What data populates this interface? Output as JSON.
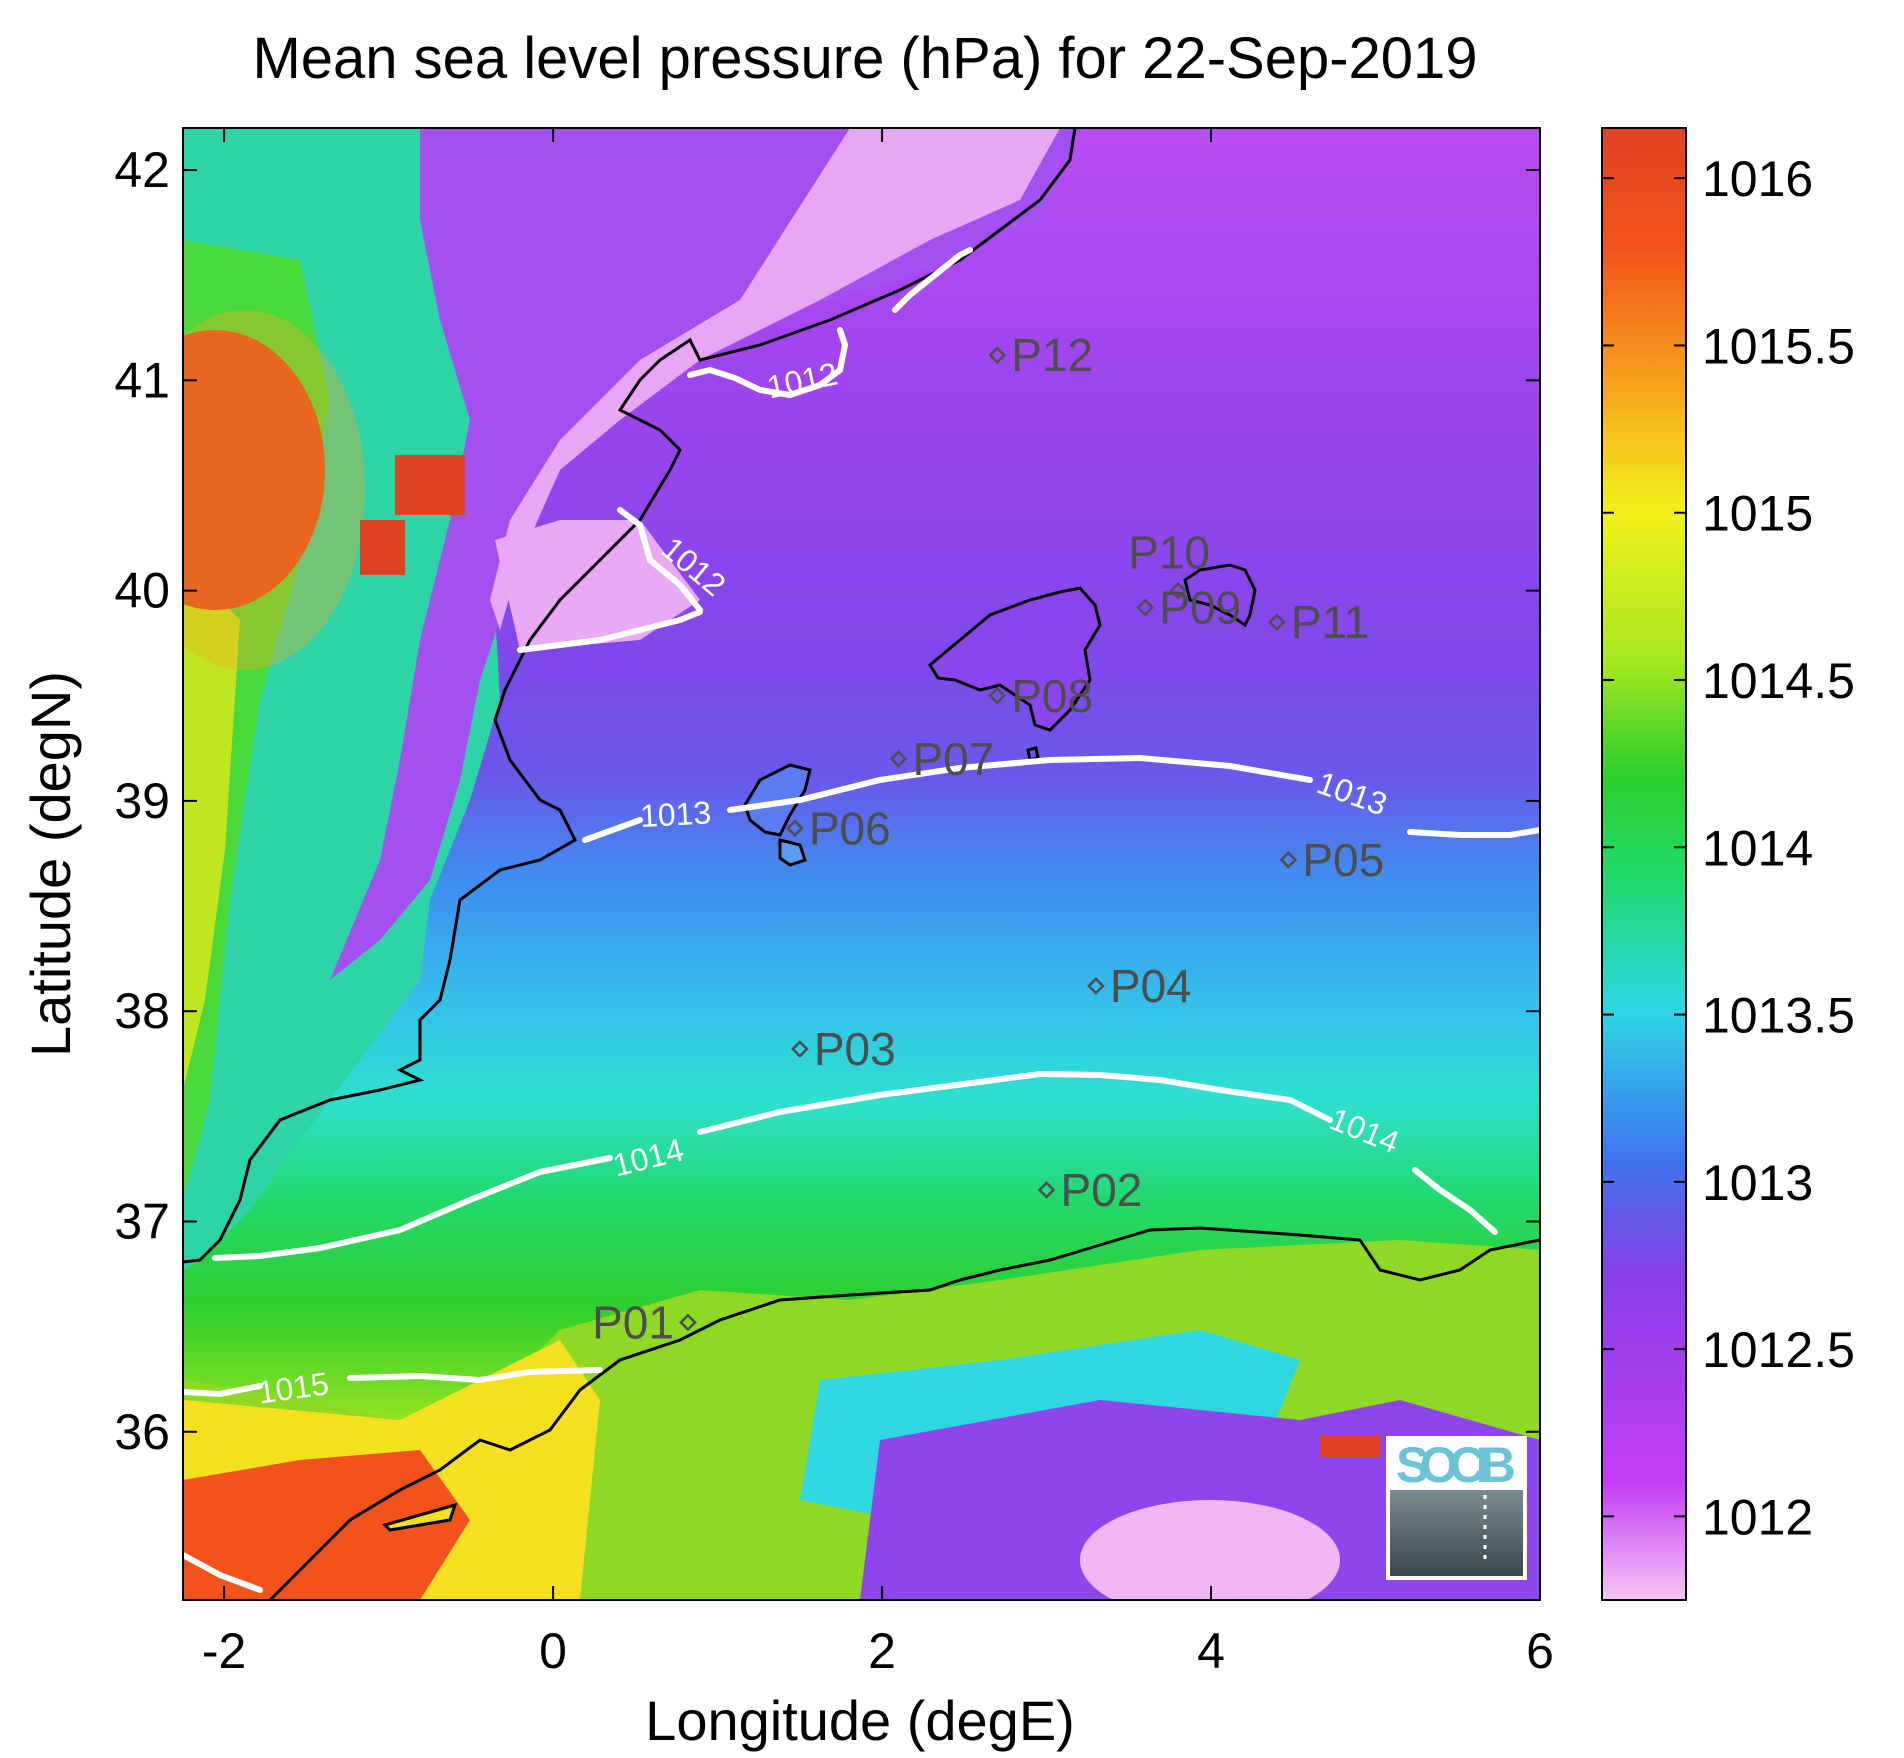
{
  "title": "Mean sea level pressure (hPa) for 22-Sep-2019",
  "map": {
    "xlabel": "Longitude (degE)",
    "ylabel": "Latitude (degN)",
    "lon_range": [
      -2.25,
      6.0
    ],
    "lat_range": [
      35.2,
      42.2
    ],
    "lon_ticks": [
      -2,
      0,
      2,
      4,
      6
    ],
    "lat_ticks": [
      36,
      37,
      38,
      39,
      40,
      41,
      42
    ],
    "lon_tick_labels": [
      "-2",
      "0",
      "2",
      "4",
      "6"
    ],
    "lat_tick_labels": [
      "36",
      "37",
      "38",
      "39",
      "40",
      "41",
      "42"
    ]
  },
  "colorbar": {
    "min": 1011.75,
    "max": 1016.15,
    "ticks": [
      1012,
      1012.5,
      1013,
      1013.5,
      1014,
      1014.5,
      1015,
      1015.5,
      1016
    ],
    "tick_labels": [
      "1012",
      "1012.5",
      "1013",
      "1013.5",
      "1014",
      "1014.5",
      "1015",
      "1015.5",
      "1016"
    ],
    "colors": [
      "#f7c5f4",
      "#c23df5",
      "#8a3fe8",
      "#3d75ef",
      "#2ed6e6",
      "#22d960",
      "#2ccf2c",
      "#a8e820",
      "#f3f21c",
      "#f7a81c",
      "#f2531a",
      "#df4222"
    ]
  },
  "contour_labels": [
    {
      "text": "1012"
    },
    {
      "text": "1012"
    },
    {
      "text": "1013"
    },
    {
      "text": "1013"
    },
    {
      "text": "1014"
    },
    {
      "text": "1014"
    },
    {
      "text": "1015"
    }
  ],
  "stations": [
    {
      "id": "P01",
      "lon": 0.82,
      "lat": 36.52
    },
    {
      "id": "P02",
      "lon": 3.0,
      "lat": 37.15
    },
    {
      "id": "P03",
      "lon": 1.5,
      "lat": 37.82
    },
    {
      "id": "P04",
      "lon": 3.3,
      "lat": 38.12
    },
    {
      "id": "P05",
      "lon": 4.47,
      "lat": 38.72
    },
    {
      "id": "P06",
      "lon": 1.47,
      "lat": 38.87
    },
    {
      "id": "P07",
      "lon": 2.1,
      "lat": 39.2
    },
    {
      "id": "P08",
      "lon": 2.7,
      "lat": 39.5
    },
    {
      "id": "P09",
      "lon": 3.6,
      "lat": 39.92
    },
    {
      "id": "P10",
      "lon": 3.8,
      "lat": 40.0
    },
    {
      "id": "P11",
      "lon": 4.4,
      "lat": 39.85
    },
    {
      "id": "P12",
      "lon": 2.7,
      "lat": 41.12
    }
  ],
  "logo": {
    "text": "SOCIB"
  }
}
